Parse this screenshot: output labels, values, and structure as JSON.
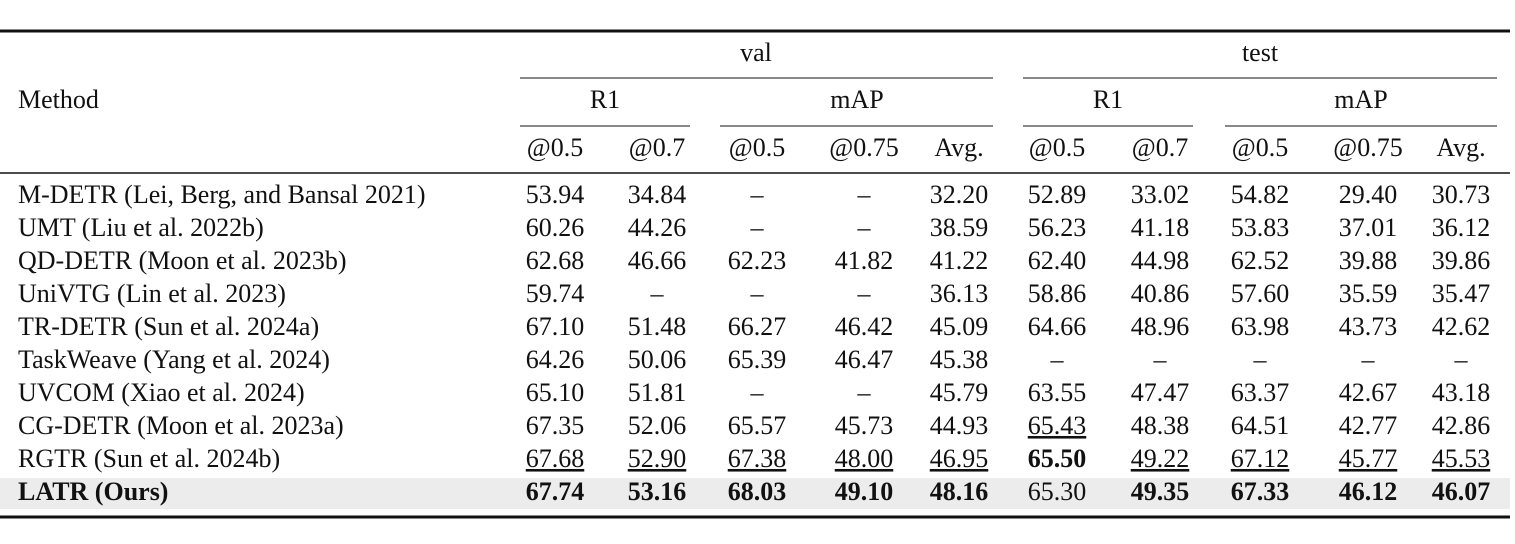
{
  "table": {
    "header": {
      "method": "Method",
      "groups": [
        "val",
        "test"
      ],
      "subgroups": [
        "R1",
        "mAP",
        "R1",
        "mAP"
      ],
      "columns": [
        "@0.5",
        "@0.7",
        "@0.5",
        "@0.75",
        "Avg.",
        "@0.5",
        "@0.7",
        "@0.5",
        "@0.75",
        "Avg."
      ]
    },
    "rows": [
      [
        "M-DETR (Lei, Berg, and Bansal 2021)",
        "53.94",
        "34.84",
        "–",
        "–",
        "32.20",
        "52.89",
        "33.02",
        "54.82",
        "29.40",
        "30.73"
      ],
      [
        "UMT (Liu et al. 2022b)",
        "60.26",
        "44.26",
        "–",
        "–",
        "38.59",
        "56.23",
        "41.18",
        "53.83",
        "37.01",
        "36.12"
      ],
      [
        "QD-DETR (Moon et al. 2023b)",
        "62.68",
        "46.66",
        "62.23",
        "41.82",
        "41.22",
        "62.40",
        "44.98",
        "62.52",
        "39.88",
        "39.86"
      ],
      [
        "UniVTG (Lin et al. 2023)",
        "59.74",
        "–",
        "–",
        "–",
        "36.13",
        "58.86",
        "40.86",
        "57.60",
        "35.59",
        "35.47"
      ],
      [
        "TR-DETR (Sun et al. 2024a)",
        "67.10",
        "51.48",
        "66.27",
        "46.42",
        "45.09",
        "64.66",
        "48.96",
        "63.98",
        "43.73",
        "42.62"
      ],
      [
        "TaskWeave (Yang et al. 2024)",
        "64.26",
        "50.06",
        "65.39",
        "46.47",
        "45.38",
        "–",
        "–",
        "–",
        "–",
        "–"
      ],
      [
        "UVCOM (Xiao et al. 2024)",
        "65.10",
        "51.81",
        "–",
        "–",
        "45.79",
        "63.55",
        "47.47",
        "63.37",
        "42.67",
        "43.18"
      ],
      [
        "CG-DETR (Moon et al. 2023a)",
        "67.35",
        "52.06",
        "65.57",
        "45.73",
        "44.93",
        "65.43",
        "48.38",
        "64.51",
        "42.77",
        "42.86"
      ],
      [
        "RGTR (Sun et al. 2024b)",
        "67.68",
        "52.90",
        "67.38",
        "48.00",
        "46.95",
        "65.50",
        "49.22",
        "67.12",
        "45.77",
        "45.53"
      ],
      [
        "LATR (Ours)",
        "67.74",
        "53.16",
        "68.03",
        "49.10",
        "48.16",
        "65.30",
        "49.35",
        "67.33",
        "46.12",
        "46.07"
      ]
    ]
  }
}
